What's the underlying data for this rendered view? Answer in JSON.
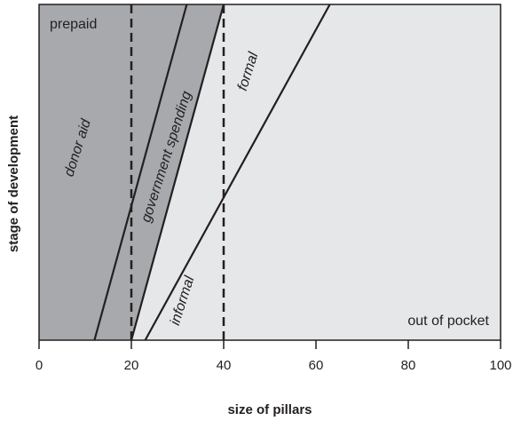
{
  "chart_data": {
    "type": "area",
    "xlabel": "size of pillars",
    "ylabel": "stage of development",
    "xlim": [
      0,
      100
    ],
    "x_ticks": [
      0,
      20,
      40,
      60,
      80,
      100
    ],
    "x_tick_labels": [
      "0",
      "20",
      "40",
      "60",
      "80",
      "100"
    ],
    "y_ticks": [],
    "grid": false,
    "boundaries": [
      {
        "name": "donor aid",
        "points": [
          [
            12,
            0
          ],
          [
            32,
            1
          ]
        ]
      },
      {
        "name": "government spending",
        "points": [
          [
            20,
            0
          ],
          [
            40,
            1
          ]
        ]
      },
      {
        "name": "formal / informal",
        "points": [
          [
            23,
            0
          ],
          [
            63,
            1
          ]
        ]
      }
    ],
    "reference_lines": [
      {
        "x": 20,
        "style": "dashed"
      },
      {
        "x": 40,
        "style": "dashed"
      }
    ],
    "regions": [
      {
        "label": "prepaid",
        "color": "#a7a9ac"
      },
      {
        "label": "out of pocket",
        "color": "#e6e7e8"
      }
    ],
    "line_labels": [
      "donor aid",
      "government spending",
      "formal",
      "informal"
    ],
    "colors": {
      "prepaid": "#a7a9ac",
      "out_of_pocket": "#e6e7e8",
      "line": "#231f20"
    }
  }
}
